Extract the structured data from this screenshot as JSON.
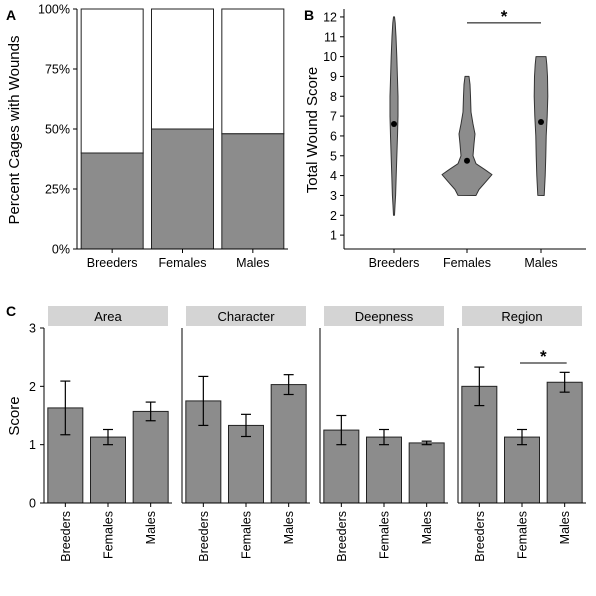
{
  "chart_data": [
    {
      "panel": "A",
      "type": "bar",
      "subtype": "stacked-percent",
      "ylabel": "Percent Cages with Wounds",
      "categories": [
        "Breeders",
        "Females",
        "Males"
      ],
      "values": [
        40,
        50,
        48
      ],
      "ylim": [
        0,
        100
      ],
      "yticks": [
        "0%",
        "25%",
        "50%",
        "75%",
        "100%"
      ],
      "colors": {
        "filled": "#8c8c8c",
        "empty": "#ffffff"
      }
    },
    {
      "panel": "B",
      "type": "violin",
      "ylabel": "Total Wound Score",
      "categories": [
        "Breeders",
        "Females",
        "Males"
      ],
      "ranges": [
        [
          2,
          12
        ],
        [
          3,
          9
        ],
        [
          3,
          10
        ]
      ],
      "means": [
        6.6,
        4.75,
        6.7
      ],
      "yticks": [
        "1",
        "2",
        "3",
        "4",
        "5",
        "6",
        "7",
        "8",
        "9",
        "10",
        "11",
        "12"
      ],
      "ylim": [
        0.3,
        12.4
      ],
      "significance": {
        "from": "Females",
        "to": "Males",
        "label": "*"
      },
      "color": "#8c8c8c"
    },
    {
      "panel": "C",
      "type": "bar",
      "subtype": "faceted-with-error",
      "ylabel": "Score",
      "ylim": [
        0,
        3
      ],
      "yticks": [
        "0",
        "1",
        "2",
        "3"
      ],
      "categories": [
        "Breeders",
        "Females",
        "Males"
      ],
      "facets": [
        {
          "name": "Area",
          "values": [
            1.63,
            1.13,
            1.57
          ],
          "errors": [
            0.46,
            0.13,
            0.16
          ]
        },
        {
          "name": "Character",
          "values": [
            1.75,
            1.33,
            2.03
          ],
          "errors": [
            0.42,
            0.19,
            0.17
          ]
        },
        {
          "name": "Deepness",
          "values": [
            1.25,
            1.13,
            1.03
          ],
          "errors": [
            0.25,
            0.13,
            0.03
          ]
        },
        {
          "name": "Region",
          "values": [
            2.0,
            1.13,
            2.07
          ],
          "errors": [
            0.33,
            0.13,
            0.17
          ],
          "significance": {
            "from": "Females",
            "to": "Males",
            "label": "*"
          }
        }
      ],
      "color": "#8c8c8c"
    }
  ],
  "panels": {
    "a": "A",
    "b": "B",
    "c": "C"
  }
}
